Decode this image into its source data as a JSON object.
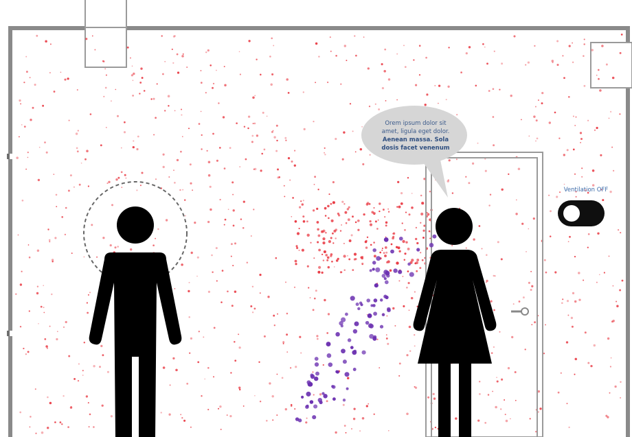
{
  "speech_bubble": {
    "line1": "Orem ipsum dolor sit",
    "line2": "amet, ligula eget dolor.",
    "line3": "Aenean massa. Sola",
    "line4": "dosis facet venenum"
  },
  "ventilation": {
    "label": "Ventilation OFF",
    "state": "off"
  },
  "colors": {
    "wall": "#8a8a8a",
    "aerosol": "#e8303a",
    "droplet": "#6a2fb0",
    "figure": "#000000",
    "bubble": "#d6d6d6",
    "text": "#3b5a8a"
  },
  "icons": {
    "man": "man-figure-icon",
    "woman": "woman-figure-icon",
    "door_handle": "door-handle-icon"
  }
}
